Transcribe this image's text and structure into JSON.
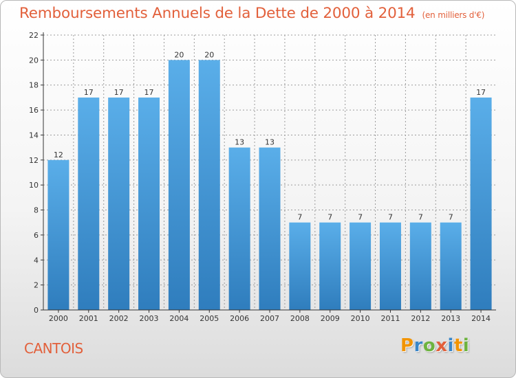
{
  "header": {
    "title": "Remboursements Annuels de la Dette de 2000 à 2014",
    "unit": "(en milliers d'€)"
  },
  "footer": {
    "place": "CANTOIS",
    "brand": "Proxiti",
    "brand_colors": [
      "#f29400",
      "#3a87c9",
      "#6db33f",
      "#e2603b",
      "#3a87c9",
      "#f29400",
      "#6db33f"
    ]
  },
  "colors": {
    "bar_top": "#5aaee9",
    "bar_bottom": "#2f7dbd",
    "axis": "#333333",
    "grid": "#9a9a9a",
    "title": "#e2603b"
  },
  "chart_data": {
    "type": "bar",
    "title": "Remboursements Annuels de la Dette de 2000 à 2014",
    "subtitle": "(en milliers d'€)",
    "categories": [
      "2000",
      "2001",
      "2002",
      "2003",
      "2004",
      "2005",
      "2006",
      "2007",
      "2008",
      "2009",
      "2010",
      "2011",
      "2012",
      "2013",
      "2014"
    ],
    "values": [
      12,
      17,
      17,
      17,
      20,
      20,
      13,
      13,
      7,
      7,
      7,
      7,
      7,
      7,
      17
    ],
    "ylim": [
      0,
      22
    ],
    "yticks": [
      0,
      2,
      4,
      6,
      8,
      10,
      12,
      14,
      16,
      18,
      20,
      22
    ],
    "grid": true,
    "data_labels": true
  }
}
